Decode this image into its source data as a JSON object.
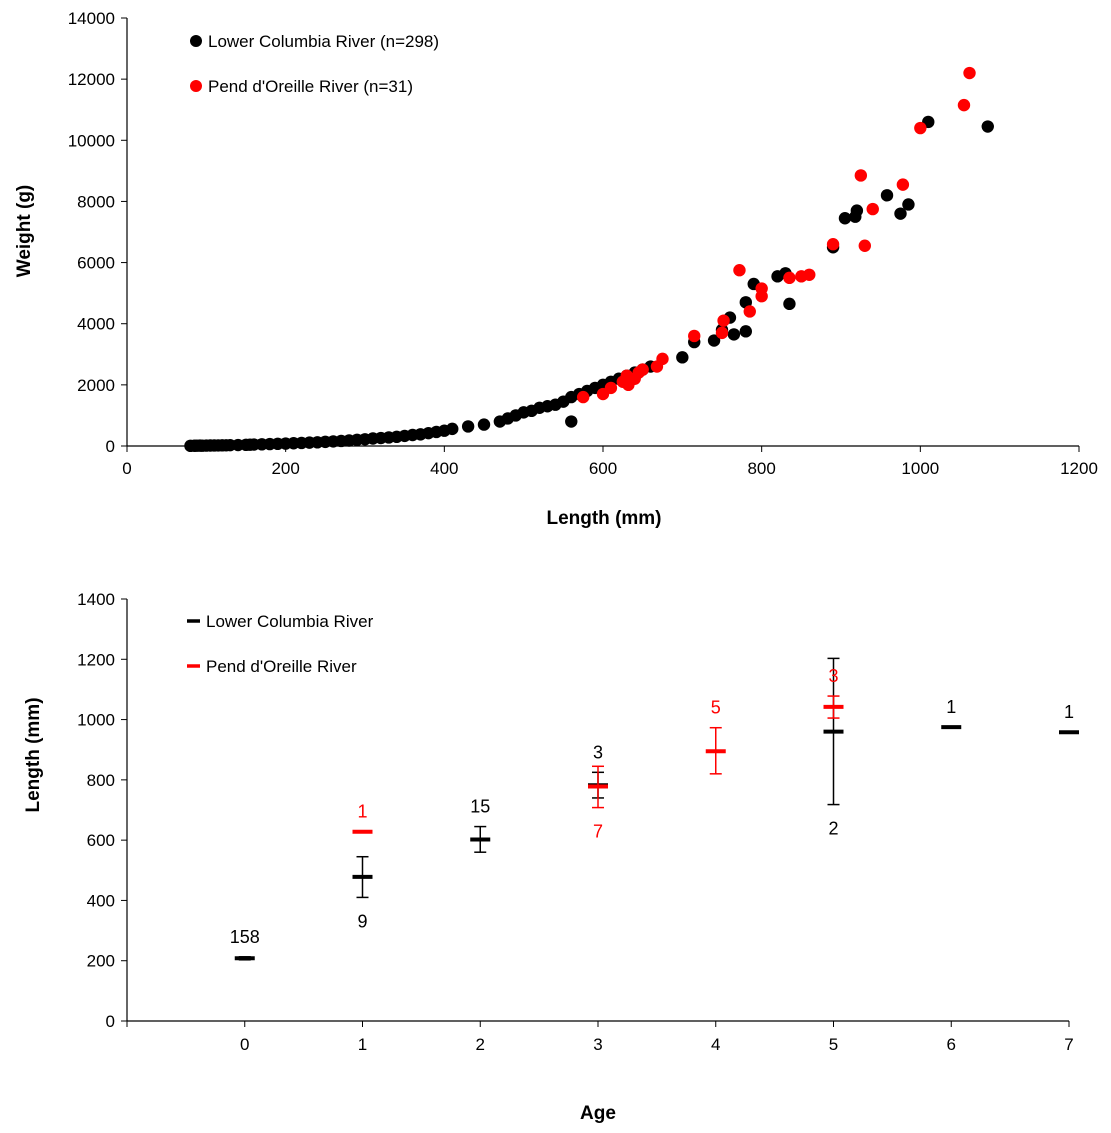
{
  "colors": {
    "lower": "#000000",
    "pend": "#ff0000"
  },
  "chart_data": [
    {
      "type": "scatter",
      "title": "",
      "xlabel": "Length (mm)",
      "ylabel": "Weight (g)",
      "xlim": [
        0,
        1200
      ],
      "ylim": [
        0,
        14000
      ],
      "xticks": [
        "0",
        "200",
        "400",
        "600",
        "800",
        "1000",
        "1200"
      ],
      "yticks": [
        "0",
        "2000",
        "4000",
        "6000",
        "8000",
        "10000",
        "12000",
        "14000"
      ],
      "legend_position": "top-left",
      "series": [
        {
          "name": "Lower Columbia River (n=298)",
          "color": "#000000",
          "points": [
            [
              80,
              6
            ],
            [
              85,
              8
            ],
            [
              88,
              10
            ],
            [
              92,
              12
            ],
            [
              95,
              10
            ],
            [
              100,
              14
            ],
            [
              105,
              16
            ],
            [
              110,
              18
            ],
            [
              115,
              20
            ],
            [
              120,
              22
            ],
            [
              125,
              24
            ],
            [
              130,
              28
            ],
            [
              140,
              32
            ],
            [
              150,
              38
            ],
            [
              155,
              42
            ],
            [
              160,
              48
            ],
            [
              170,
              55
            ],
            [
              180,
              62
            ],
            [
              190,
              70
            ],
            [
              200,
              80
            ],
            [
              210,
              90
            ],
            [
              220,
              100
            ],
            [
              230,
              110
            ],
            [
              240,
              120
            ],
            [
              250,
              135
            ],
            [
              260,
              150
            ],
            [
              270,
              165
            ],
            [
              280,
              180
            ],
            [
              290,
              200
            ],
            [
              300,
              220
            ],
            [
              310,
              245
            ],
            [
              320,
              260
            ],
            [
              330,
              280
            ],
            [
              340,
              300
            ],
            [
              350,
              330
            ],
            [
              360,
              360
            ],
            [
              370,
              380
            ],
            [
              380,
              420
            ],
            [
              390,
              460
            ],
            [
              400,
              500
            ],
            [
              410,
              560
            ],
            [
              430,
              640
            ],
            [
              450,
              700
            ],
            [
              470,
              800
            ],
            [
              480,
              900
            ],
            [
              490,
              1000
            ],
            [
              500,
              1100
            ],
            [
              510,
              1150
            ],
            [
              520,
              1250
            ],
            [
              530,
              1300
            ],
            [
              540,
              1350
            ],
            [
              550,
              1450
            ],
            [
              560,
              1600
            ],
            [
              560,
              800
            ],
            [
              570,
              1700
            ],
            [
              580,
              1800
            ],
            [
              590,
              1900
            ],
            [
              600,
              2000
            ],
            [
              610,
              2100
            ],
            [
              620,
              2200
            ],
            [
              630,
              2300
            ],
            [
              640,
              2400
            ],
            [
              650,
              2500
            ],
            [
              660,
              2600
            ],
            [
              700,
              2900
            ],
            [
              715,
              3400
            ],
            [
              740,
              3450
            ],
            [
              750,
              3800
            ],
            [
              760,
              4200
            ],
            [
              765,
              3650
            ],
            [
              780,
              3750
            ],
            [
              780,
              4700
            ],
            [
              790,
              5300
            ],
            [
              820,
              5550
            ],
            [
              830,
              5650
            ],
            [
              835,
              4650
            ],
            [
              890,
              6500
            ],
            [
              905,
              7450
            ],
            [
              918,
              7500
            ],
            [
              920,
              7700
            ],
            [
              958,
              8200
            ],
            [
              975,
              7600
            ],
            [
              985,
              7900
            ],
            [
              1010,
              10600
            ],
            [
              1085,
              10450
            ]
          ]
        },
        {
          "name": "Pend d'Oreille River (n=31)",
          "color": "#ff0000",
          "points": [
            [
              575,
              1600
            ],
            [
              600,
              1700
            ],
            [
              610,
              1900
            ],
            [
              625,
              2100
            ],
            [
              630,
              2300
            ],
            [
              632,
              2000
            ],
            [
              640,
              2200
            ],
            [
              645,
              2400
            ],
            [
              650,
              2500
            ],
            [
              668,
              2600
            ],
            [
              675,
              2850
            ],
            [
              715,
              3600
            ],
            [
              750,
              3700
            ],
            [
              752,
              4100
            ],
            [
              772,
              5750
            ],
            [
              785,
              4400
            ],
            [
              800,
              4900
            ],
            [
              800,
              5150
            ],
            [
              835,
              5500
            ],
            [
              850,
              5550
            ],
            [
              860,
              5600
            ],
            [
              890,
              6600
            ],
            [
              925,
              8850
            ],
            [
              930,
              6550
            ],
            [
              940,
              7750
            ],
            [
              978,
              8550
            ],
            [
              1000,
              10400
            ],
            [
              1055,
              11150
            ],
            [
              1062,
              12200
            ]
          ]
        }
      ]
    },
    {
      "type": "scatter",
      "title": "",
      "xlabel": "Age",
      "ylabel": "Length (mm)",
      "xlim": [
        -1,
        7
      ],
      "ylim": [
        0,
        1400
      ],
      "xticks": [
        "0",
        "1",
        "2",
        "3",
        "4",
        "5",
        "6",
        "7"
      ],
      "yticks": [
        "0",
        "200",
        "400",
        "600",
        "800",
        "1000",
        "1200",
        "1400"
      ],
      "legend_position": "top-left",
      "series": [
        {
          "name": "Lower Columbia River",
          "color": "#000000",
          "points": [
            {
              "age": 0,
              "mean": 208,
              "lower": 203,
              "upper": 213,
              "n": "158",
              "label_pos": "above"
            },
            {
              "age": 1,
              "mean": 478,
              "lower": 410,
              "upper": 545,
              "n": "9",
              "label_pos": "below"
            },
            {
              "age": 2,
              "mean": 602,
              "lower": 560,
              "upper": 645,
              "n": "15",
              "label_pos": "above"
            },
            {
              "age": 3,
              "mean": 782,
              "lower": 740,
              "upper": 825,
              "n": "3",
              "label_pos": "above"
            },
            {
              "age": 5,
              "mean": 960,
              "lower": 718,
              "upper": 1203,
              "n": "2",
              "label_pos": "below"
            },
            {
              "age": 6,
              "mean": 975,
              "lower": null,
              "upper": null,
              "n": "1",
              "label_pos": "above"
            },
            {
              "age": 7,
              "mean": 958,
              "lower": null,
              "upper": null,
              "n": "1",
              "label_pos": "above"
            }
          ]
        },
        {
          "name": "Pend d'Oreille River",
          "color": "#ff0000",
          "points": [
            {
              "age": 1,
              "mean": 628,
              "lower": null,
              "upper": null,
              "n": "1",
              "label_pos": "above"
            },
            {
              "age": 3,
              "mean": 778,
              "lower": 708,
              "upper": 845,
              "n": "7",
              "label_pos": "below"
            },
            {
              "age": 4,
              "mean": 895,
              "lower": 820,
              "upper": 973,
              "n": "5",
              "label_pos": "above"
            },
            {
              "age": 5,
              "mean": 1042,
              "lower": 1005,
              "upper": 1078,
              "n": "3",
              "label_pos": "above"
            }
          ]
        }
      ]
    }
  ]
}
